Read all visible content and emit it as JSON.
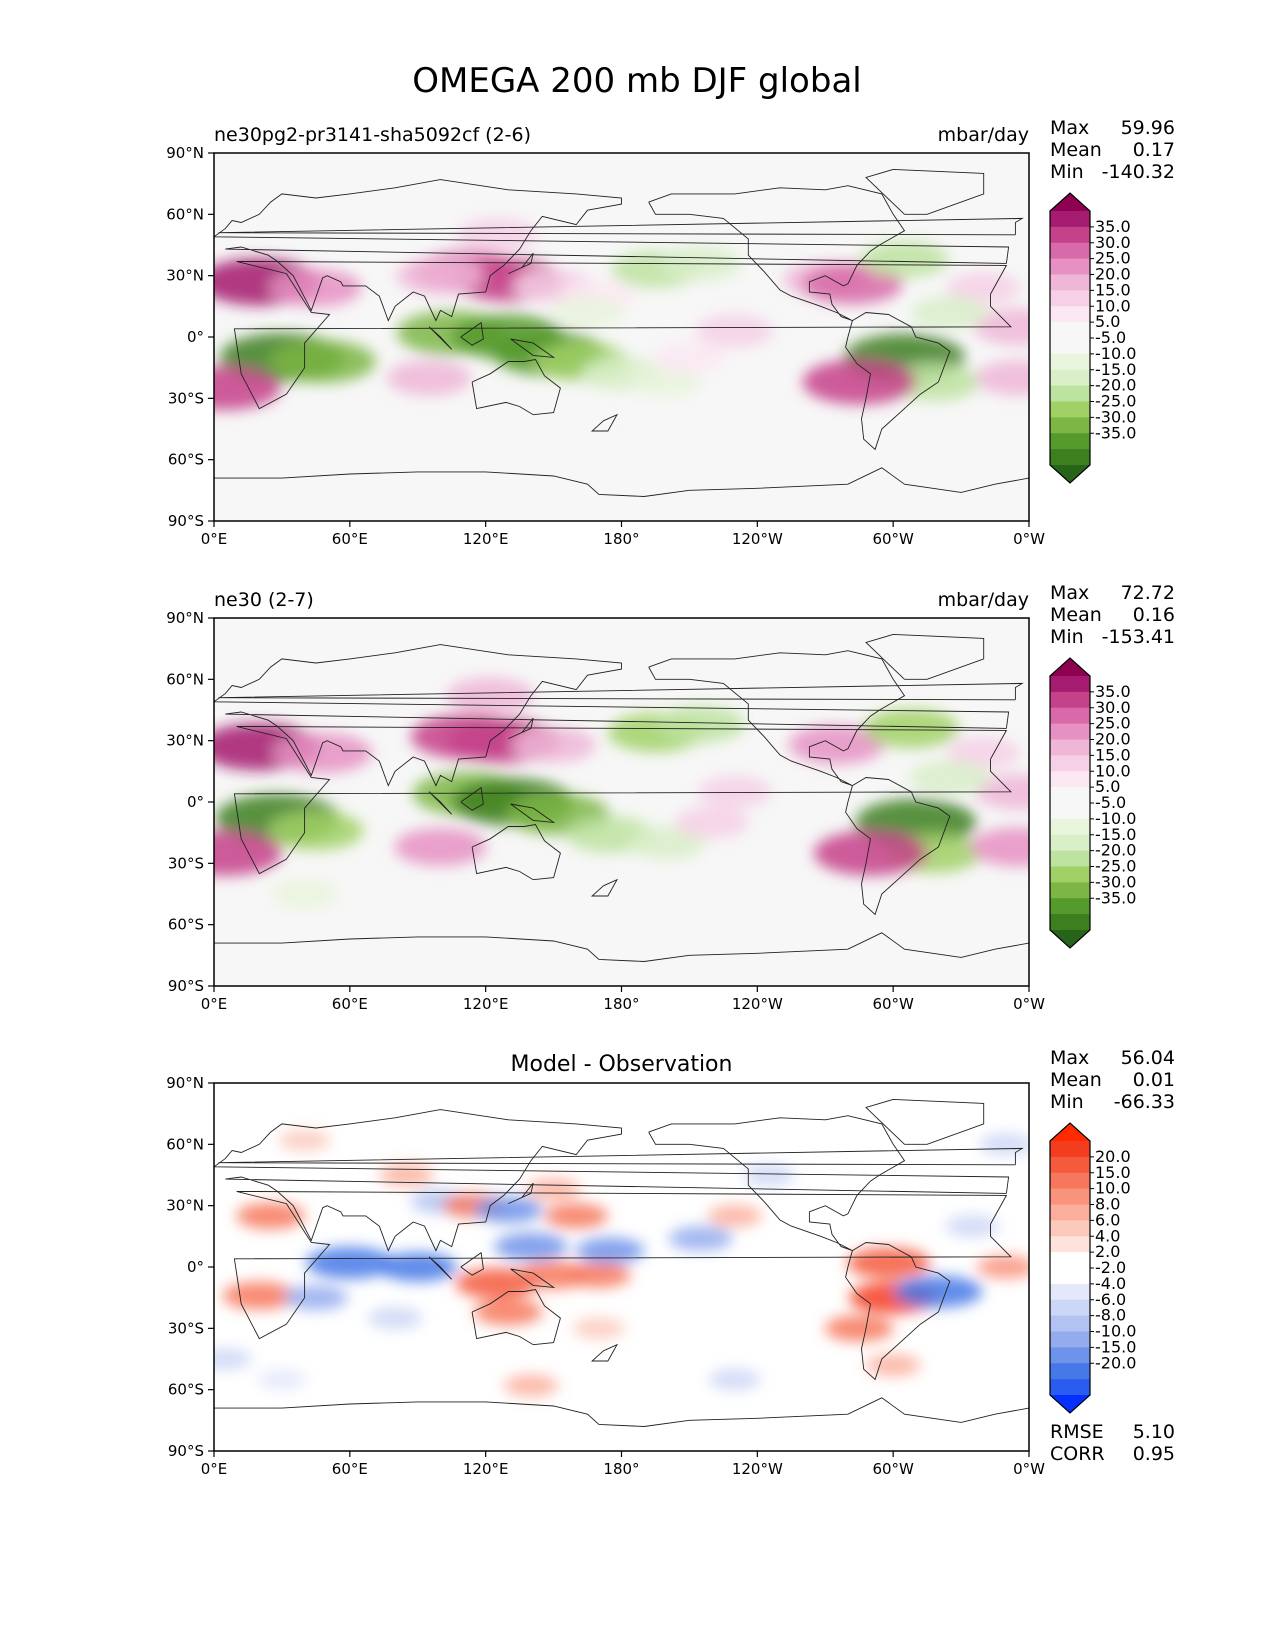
{
  "figure": {
    "title": "OMEGA 200 mb DJF global"
  },
  "colors": {
    "prgn": [
      "#276419",
      "#3d7f1f",
      "#559a2c",
      "#7db644",
      "#a1d166",
      "#bde3a0",
      "#d8efc8",
      "#e9f5dc",
      "#f7f7f7",
      "#f7f7f7",
      "#fbe8f3",
      "#f6d0e6",
      "#efb6d7",
      "#e690c3",
      "#d86aa9",
      "#c54189",
      "#a51b6f",
      "#8e0152"
    ],
    "diff": [
      "#0530ff",
      "#2a5cf0",
      "#4678e8",
      "#6e93ea",
      "#94acee",
      "#b2c3f2",
      "#ccd6f6",
      "#e3e9fa",
      "#ffffff",
      "#ffffff",
      "#fde3dc",
      "#fcc9bc",
      "#fbae9c",
      "#f9937c",
      "#f7775c",
      "#f55a3c",
      "#f43c1e",
      "#ff2a00"
    ]
  },
  "chart_data": [
    {
      "type": "heatmap",
      "panel": "test",
      "title_left": "ne30pg2-pr3141-sha5092cf (2-6)",
      "title_right": "mbar/day",
      "stats": [
        {
          "label": "Max",
          "value": "59.96"
        },
        {
          "label": "Mean",
          "value": "0.17"
        },
        {
          "label": "Min",
          "value": "-140.32"
        }
      ],
      "colorbar_labels": [
        "35.0",
        "30.0",
        "25.0",
        "20.0",
        "15.0",
        "10.0",
        "5.0",
        "-5.0",
        "-10.0",
        "-15.0",
        "-20.0",
        "-25.0",
        "-30.0",
        "-35.0"
      ],
      "colormap": "prgn",
      "xticks": [
        "0°E",
        "60°E",
        "120°E",
        "180°",
        "120°W",
        "60°W",
        "0°W"
      ],
      "yticks": [
        "90°N",
        "60°N",
        "30°N",
        "0°",
        "30°S",
        "60°S",
        "90°S"
      ],
      "xlim": [
        0,
        360
      ],
      "ylim": [
        -90,
        90
      ],
      "features": [
        {
          "lon": 20,
          "lat": 27,
          "value": 36
        },
        {
          "lon": 45,
          "lat": 24,
          "value": 20
        },
        {
          "lon": 112,
          "lat": 32,
          "value": 28
        },
        {
          "lon": 130,
          "lat": 28,
          "value": 30
        },
        {
          "lon": 125,
          "lat": 50,
          "value": 14
        },
        {
          "lon": 100,
          "lat": 30,
          "value": 18
        },
        {
          "lon": 150,
          "lat": 25,
          "value": 14
        },
        {
          "lon": 170,
          "lat": 20,
          "value": 9
        },
        {
          "lon": 270,
          "lat": 28,
          "value": 16
        },
        {
          "lon": 282,
          "lat": 26,
          "value": 25
        },
        {
          "lon": 340,
          "lat": 24,
          "value": 10
        },
        {
          "lon": 355,
          "lat": 5,
          "value": 18
        },
        {
          "lon": 30,
          "lat": -10,
          "value": -38
        },
        {
          "lon": 48,
          "lat": -12,
          "value": -28
        },
        {
          "lon": 105,
          "lat": 2,
          "value": -30
        },
        {
          "lon": 130,
          "lat": 0,
          "value": -32
        },
        {
          "lon": 148,
          "lat": -8,
          "value": -32
        },
        {
          "lon": 162,
          "lat": -12,
          "value": -22
        },
        {
          "lon": 180,
          "lat": -18,
          "value": -14
        },
        {
          "lon": 200,
          "lat": -22,
          "value": -8
        },
        {
          "lon": 195,
          "lat": 33,
          "value": -18
        },
        {
          "lon": 215,
          "lat": 36,
          "value": -14
        },
        {
          "lon": 165,
          "lat": 12,
          "value": -10
        },
        {
          "lon": 305,
          "lat": -10,
          "value": -36
        },
        {
          "lon": 318,
          "lat": -22,
          "value": -20
        },
        {
          "lon": 305,
          "lat": 38,
          "value": -18
        },
        {
          "lon": 325,
          "lat": 12,
          "value": -12
        },
        {
          "lon": 5,
          "lat": -25,
          "value": 30
        },
        {
          "lon": 355,
          "lat": -20,
          "value": 16
        },
        {
          "lon": 95,
          "lat": -20,
          "value": 16
        },
        {
          "lon": 285,
          "lat": -22,
          "value": 32
        },
        {
          "lon": 230,
          "lat": 3,
          "value": 12
        },
        {
          "lon": 210,
          "lat": -10,
          "value": 9
        },
        {
          "lon": 180,
          "lat": -45,
          "value": -4
        }
      ]
    },
    {
      "type": "heatmap",
      "panel": "reference",
      "title_left": "ne30 (2-7)",
      "title_right": "mbar/day",
      "stats": [
        {
          "label": "Max",
          "value": "72.72"
        },
        {
          "label": "Mean",
          "value": "0.16"
        },
        {
          "label": "Min",
          "value": "-153.41"
        }
      ],
      "colorbar_labels": [
        "35.0",
        "30.0",
        "25.0",
        "20.0",
        "15.0",
        "10.0",
        "5.0",
        "-5.0",
        "-10.0",
        "-15.0",
        "-20.0",
        "-25.0",
        "-30.0",
        "-35.0"
      ],
      "colormap": "prgn",
      "xticks": [
        "0°E",
        "60°E",
        "120°E",
        "180°",
        "120°W",
        "60°W",
        "0°W"
      ],
      "yticks": [
        "90°N",
        "60°N",
        "30°N",
        "0°",
        "30°S",
        "60°S",
        "90°S"
      ],
      "xlim": [
        0,
        360
      ],
      "ylim": [
        -90,
        90
      ],
      "features": [
        {
          "lon": 20,
          "lat": 27,
          "value": 36
        },
        {
          "lon": 48,
          "lat": 24,
          "value": 24
        },
        {
          "lon": 112,
          "lat": 32,
          "value": 32
        },
        {
          "lon": 128,
          "lat": 30,
          "value": 32
        },
        {
          "lon": 122,
          "lat": 52,
          "value": 18
        },
        {
          "lon": 150,
          "lat": 28,
          "value": 16
        },
        {
          "lon": 275,
          "lat": 28,
          "value": 22
        },
        {
          "lon": 340,
          "lat": 24,
          "value": 10
        },
        {
          "lon": 355,
          "lat": 5,
          "value": 16
        },
        {
          "lon": 28,
          "lat": -8,
          "value": -38
        },
        {
          "lon": 45,
          "lat": -14,
          "value": -22
        },
        {
          "lon": 112,
          "lat": 4,
          "value": -30
        },
        {
          "lon": 132,
          "lat": 0,
          "value": -36
        },
        {
          "lon": 152,
          "lat": -6,
          "value": -26
        },
        {
          "lon": 175,
          "lat": -16,
          "value": -18
        },
        {
          "lon": 200,
          "lat": -20,
          "value": -12
        },
        {
          "lon": 195,
          "lat": 34,
          "value": -22
        },
        {
          "lon": 215,
          "lat": 38,
          "value": -18
        },
        {
          "lon": 310,
          "lat": -10,
          "value": -36
        },
        {
          "lon": 318,
          "lat": -25,
          "value": -22
        },
        {
          "lon": 308,
          "lat": 36,
          "value": -22
        },
        {
          "lon": 325,
          "lat": 12,
          "value": -14
        },
        {
          "lon": 5,
          "lat": -25,
          "value": 32
        },
        {
          "lon": 355,
          "lat": -22,
          "value": 22
        },
        {
          "lon": 100,
          "lat": -22,
          "value": 20
        },
        {
          "lon": 290,
          "lat": -25,
          "value": 32
        },
        {
          "lon": 230,
          "lat": 5,
          "value": 10
        },
        {
          "lon": 220,
          "lat": -10,
          "value": 10
        },
        {
          "lon": 40,
          "lat": -45,
          "value": -6
        }
      ]
    },
    {
      "type": "heatmap",
      "panel": "difference",
      "title_center": "Model - Observation",
      "stats": [
        {
          "label": "Max",
          "value": "56.04"
        },
        {
          "label": "Mean",
          "value": "0.01"
        },
        {
          "label": "Min",
          "value": "-66.33"
        }
      ],
      "metrics": [
        {
          "label": "RMSE",
          "value": "5.10"
        },
        {
          "label": "CORR",
          "value": "0.95"
        }
      ],
      "colorbar_labels": [
        "20.0",
        "15.0",
        "10.0",
        "8.0",
        "6.0",
        "4.0",
        "2.0",
        "-2.0",
        "-4.0",
        "-6.0",
        "-8.0",
        "-10.0",
        "-15.0",
        "-20.0"
      ],
      "colormap": "diff",
      "xticks": [
        "0°E",
        "60°E",
        "120°E",
        "180°",
        "120°W",
        "60°W",
        "0°W"
      ],
      "yticks": [
        "90°N",
        "60°N",
        "30°N",
        "0°",
        "30°S",
        "60°S",
        "90°S"
      ],
      "xlim": [
        0,
        360
      ],
      "ylim": [
        -90,
        90
      ],
      "features": [
        {
          "lon": 25,
          "lat": 25,
          "value": 12
        },
        {
          "lon": 40,
          "lat": 62,
          "value": 5
        },
        {
          "lon": 85,
          "lat": 45,
          "value": 6
        },
        {
          "lon": 100,
          "lat": 32,
          "value": -8
        },
        {
          "lon": 115,
          "lat": 30,
          "value": 10
        },
        {
          "lon": 130,
          "lat": 28,
          "value": -12
        },
        {
          "lon": 150,
          "lat": 38,
          "value": 6
        },
        {
          "lon": 140,
          "lat": 10,
          "value": -14
        },
        {
          "lon": 175,
          "lat": 8,
          "value": -12
        },
        {
          "lon": 215,
          "lat": 14,
          "value": -10
        },
        {
          "lon": 160,
          "lat": 25,
          "value": 10
        },
        {
          "lon": 230,
          "lat": 25,
          "value": 6
        },
        {
          "lon": 60,
          "lat": 2,
          "value": -20
        },
        {
          "lon": 90,
          "lat": 0,
          "value": -16
        },
        {
          "lon": 125,
          "lat": -8,
          "value": 18
        },
        {
          "lon": 150,
          "lat": -4,
          "value": 14
        },
        {
          "lon": 170,
          "lat": -4,
          "value": 10
        },
        {
          "lon": 20,
          "lat": -14,
          "value": 14
        },
        {
          "lon": 45,
          "lat": -15,
          "value": -10
        },
        {
          "lon": 80,
          "lat": -25,
          "value": -6
        },
        {
          "lon": 130,
          "lat": -22,
          "value": 12
        },
        {
          "lon": 170,
          "lat": -30,
          "value": 5
        },
        {
          "lon": 298,
          "lat": 2,
          "value": 18
        },
        {
          "lon": 300,
          "lat": -15,
          "value": 20
        },
        {
          "lon": 320,
          "lat": -12,
          "value": -20
        },
        {
          "lon": 285,
          "lat": -30,
          "value": 12
        },
        {
          "lon": 335,
          "lat": 20,
          "value": -6
        },
        {
          "lon": 350,
          "lat": 0,
          "value": 8
        },
        {
          "lon": 350,
          "lat": 60,
          "value": -6
        },
        {
          "lon": 30,
          "lat": -55,
          "value": -4
        },
        {
          "lon": 140,
          "lat": -58,
          "value": 6
        },
        {
          "lon": 230,
          "lat": -55,
          "value": -5
        },
        {
          "lon": 300,
          "lat": -48,
          "value": 6
        },
        {
          "lon": 5,
          "lat": -45,
          "value": -5
        },
        {
          "lon": 245,
          "lat": 45,
          "value": -5
        }
      ]
    }
  ]
}
